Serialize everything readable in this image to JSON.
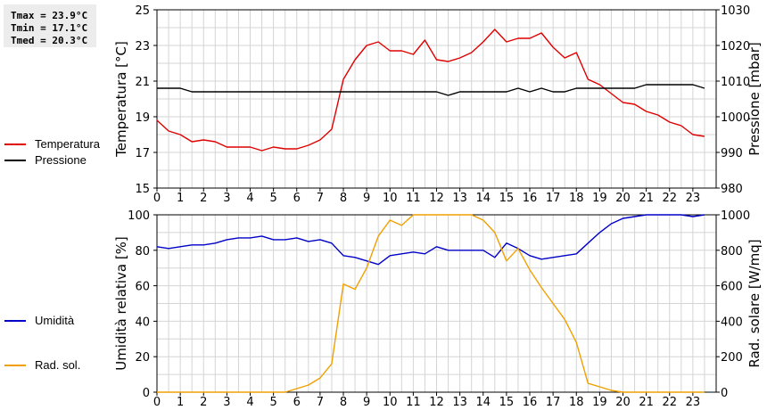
{
  "stats": {
    "tmax": "Tmax = 23.9°C",
    "tmin": "Tmin = 17.1°C",
    "tmed": "Tmed = 20.3°C"
  },
  "chart_data": [
    {
      "type": "line",
      "x_ticks": [
        "0",
        "1",
        "2",
        "3",
        "4",
        "5",
        "6",
        "7",
        "8",
        "9",
        "10",
        "11",
        "12",
        "13",
        "14",
        "15",
        "16",
        "17",
        "18",
        "19",
        "20",
        "21",
        "22",
        "23"
      ],
      "xlim": [
        0,
        24
      ],
      "ylabel": "Temperatura [°C]",
      "ylim": [
        15,
        25
      ],
      "y_ticks": [
        15,
        17,
        19,
        21,
        23,
        25
      ],
      "y2label": "Pressione [mbar]",
      "y2lim": [
        980,
        1030
      ],
      "y2_ticks": [
        980,
        990,
        1000,
        1010,
        1020,
        1030
      ],
      "grid": true,
      "legend_position": "left",
      "series": [
        {
          "name": "Temperatura",
          "axis": "left",
          "color": "#e00000",
          "x": [
            0,
            0.5,
            1,
            1.5,
            2,
            2.5,
            3,
            3.5,
            4,
            4.5,
            5,
            5.5,
            6,
            6.5,
            7,
            7.5,
            8,
            8.5,
            9,
            9.5,
            10,
            10.5,
            11,
            11.5,
            12,
            12.5,
            13,
            13.5,
            14,
            14.5,
            15,
            15.5,
            16,
            16.5,
            17,
            17.5,
            18,
            18.5,
            19,
            19.5,
            20,
            20.5,
            21,
            21.5,
            22,
            22.5,
            23,
            23.5
          ],
          "y": [
            18.8,
            18.2,
            18.0,
            17.6,
            17.7,
            17.6,
            17.3,
            17.3,
            17.3,
            17.1,
            17.3,
            17.2,
            17.2,
            17.4,
            17.7,
            18.3,
            21.1,
            22.2,
            23.0,
            23.2,
            22.7,
            22.7,
            22.5,
            23.3,
            22.2,
            22.1,
            22.3,
            22.6,
            23.2,
            23.9,
            23.2,
            23.4,
            23.4,
            23.7,
            22.9,
            22.3,
            22.6,
            21.1,
            20.8,
            20.3,
            19.8,
            19.7,
            19.3,
            19.1,
            18.7,
            18.5,
            18.0,
            17.9
          ]
        },
        {
          "name": "Pressione",
          "axis": "right",
          "color": "#000000",
          "x": [
            0,
            0.5,
            1,
            1.5,
            2,
            2.5,
            3,
            3.5,
            4,
            4.5,
            5,
            5.5,
            6,
            6.5,
            7,
            7.5,
            8,
            8.5,
            9,
            9.5,
            10,
            10.5,
            11,
            11.5,
            12,
            12.5,
            13,
            13.5,
            14,
            14.5,
            15,
            15.5,
            16,
            16.5,
            17,
            17.5,
            18,
            18.5,
            19,
            19.5,
            20,
            20.5,
            21,
            21.5,
            22,
            22.5,
            23,
            23.5
          ],
          "y": [
            1008,
            1008,
            1008,
            1007,
            1007,
            1007,
            1007,
            1007,
            1007,
            1007,
            1007,
            1007,
            1007,
            1007,
            1007,
            1007,
            1007,
            1007,
            1007,
            1007,
            1007,
            1007,
            1007,
            1007,
            1007,
            1006,
            1007,
            1007,
            1007,
            1007,
            1007,
            1008,
            1007,
            1008,
            1007,
            1007,
            1008,
            1008,
            1008,
            1008,
            1008,
            1008,
            1009,
            1009,
            1009,
            1009,
            1009,
            1008
          ]
        }
      ]
    },
    {
      "type": "line",
      "x_ticks": [
        "0",
        "1",
        "2",
        "3",
        "4",
        "5",
        "6",
        "7",
        "8",
        "9",
        "10",
        "11",
        "12",
        "13",
        "14",
        "15",
        "16",
        "17",
        "18",
        "19",
        "20",
        "21",
        "22",
        "23"
      ],
      "xlim": [
        0,
        24
      ],
      "ylabel": "Umidità relativa [%]",
      "ylim": [
        0,
        100
      ],
      "y_ticks": [
        0,
        20,
        40,
        60,
        80,
        100
      ],
      "y2label": "Rad. solare [W/mq]",
      "y2lim": [
        0,
        1000
      ],
      "y2_ticks": [
        0,
        200,
        400,
        600,
        800,
        1000
      ],
      "grid": true,
      "legend_position": "left",
      "series": [
        {
          "name": "Umidità",
          "axis": "left",
          "color": "#0000c8",
          "x": [
            0,
            0.5,
            1,
            1.5,
            2,
            2.5,
            3,
            3.5,
            4,
            4.5,
            5,
            5.5,
            6,
            6.5,
            7,
            7.5,
            8,
            8.5,
            9,
            9.5,
            10,
            10.5,
            11,
            11.5,
            12,
            12.5,
            13,
            13.5,
            14,
            14.5,
            15,
            15.5,
            16,
            16.5,
            17,
            17.5,
            18,
            18.5,
            19,
            19.5,
            20,
            20.5,
            21,
            21.5,
            22,
            22.5,
            23,
            23.5
          ],
          "y": [
            82,
            81,
            82,
            83,
            83,
            84,
            86,
            87,
            87,
            88,
            86,
            86,
            87,
            85,
            86,
            84,
            77,
            76,
            74,
            72,
            77,
            78,
            79,
            78,
            82,
            80,
            80,
            80,
            80,
            76,
            84,
            81,
            77,
            75,
            76,
            77,
            78,
            84,
            90,
            95,
            98,
            99,
            100,
            100,
            100,
            100,
            99,
            100
          ]
        },
        {
          "name": "Rad. sol.",
          "axis": "right",
          "color": "#f0a000",
          "x": [
            0,
            0.5,
            1,
            1.5,
            2,
            2.5,
            3,
            3.5,
            4,
            4.5,
            5,
            5.5,
            6,
            6.5,
            7,
            7.5,
            8,
            8.5,
            9,
            9.5,
            10,
            10.5,
            11,
            11.5,
            12,
            12.5,
            13,
            13.5,
            14,
            14.5,
            15,
            15.5,
            16,
            16.5,
            17,
            17.5,
            18,
            18.5,
            19,
            19.5,
            20,
            20.5,
            21,
            21.5,
            22,
            22.5,
            23,
            23.5
          ],
          "y": [
            0,
            0,
            0,
            0,
            0,
            0,
            0,
            0,
            0,
            0,
            0,
            0,
            20,
            40,
            80,
            160,
            610,
            580,
            700,
            880,
            970,
            940,
            1000,
            1000,
            1000,
            1000,
            1000,
            1000,
            970,
            900,
            740,
            810,
            690,
            590,
            500,
            410,
            280,
            50,
            30,
            10,
            0,
            0,
            0,
            0,
            0,
            0,
            0,
            0
          ]
        }
      ]
    }
  ]
}
